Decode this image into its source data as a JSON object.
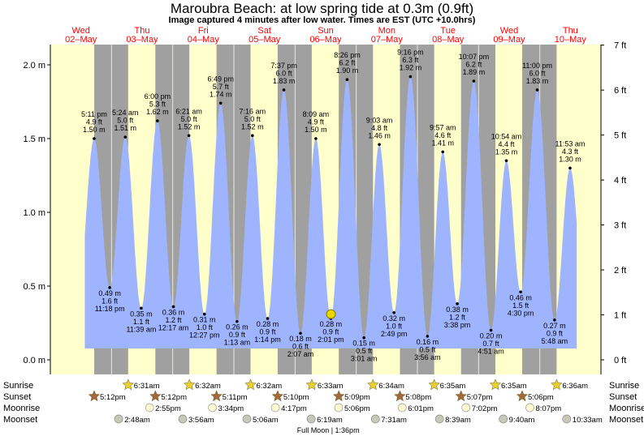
{
  "title": "Maroubra Beach: at low  spring tide at 0.3m (0.9ft)",
  "subtitle": "Image captured 4 minutes after low water. Times are EST (UTC +10.0hrs)",
  "days": [
    {
      "name": "Wed",
      "date": "02–May"
    },
    {
      "name": "Thu",
      "date": "03–May"
    },
    {
      "name": "Fri",
      "date": "04–May"
    },
    {
      "name": "Sat",
      "date": "05–May"
    },
    {
      "name": "Sun",
      "date": "06–May"
    },
    {
      "name": "Mon",
      "date": "07–May"
    },
    {
      "name": "Tue",
      "date": "08–May"
    },
    {
      "name": "Wed",
      "date": "09–May"
    },
    {
      "name": "Thu",
      "date": "10–May"
    }
  ],
  "colors": {
    "day": "#ffffcc",
    "night": "#a0a0a0",
    "water": "#9fb4ff",
    "day_label": "#ff0000",
    "sun_star": "#e8d030",
    "sunset_star": "#a06a3c"
  },
  "chart_data": {
    "type": "area",
    "x_unit": "hours since 00:00 Wed 02-May (EST)",
    "y_left_ticks": [
      "0.0 m",
      "0.5 m",
      "1.0 m",
      "1.5 m",
      "2.0 m"
    ],
    "y_left_values": [
      0,
      0.5,
      1.0,
      1.5,
      2.0
    ],
    "y_right_ticks": [
      "0 ft",
      "1 ft",
      "2 ft",
      "3 ft",
      "4 ft",
      "5 ft",
      "6 ft",
      "7 ft"
    ],
    "y_right_values": [
      0,
      1,
      2,
      3,
      4,
      5,
      6,
      7
    ],
    "ylim_m": [
      -0.1,
      2.15
    ],
    "current_marker": {
      "t": 110.08,
      "height_m": 0.31
    },
    "tides": [
      {
        "t": 17.18,
        "time": "5:11 pm",
        "ft": "4.9 ft",
        "m": "1.50 m",
        "h": 1.5,
        "type": "high"
      },
      {
        "t": 23.3,
        "time": "11:18 pm",
        "ft": "1.6 ft",
        "m": "0.49 m",
        "h": 0.49,
        "type": "low"
      },
      {
        "t": 29.4,
        "time": "5:24 am",
        "ft": "5.0 ft",
        "m": "1.51 m",
        "h": 1.51,
        "type": "high"
      },
      {
        "t": 35.65,
        "time": "11:39 am",
        "ft": "1.1 ft",
        "m": "0.35 m",
        "h": 0.35,
        "type": "low"
      },
      {
        "t": 42.0,
        "time": "6:00 pm",
        "ft": "5.3 ft",
        "m": "1.62 m",
        "h": 1.62,
        "type": "high"
      },
      {
        "t": 48.28,
        "time": "12:17 am",
        "ft": "1.2 ft",
        "m": "0.36 m",
        "h": 0.36,
        "type": "low"
      },
      {
        "t": 54.35,
        "time": "6:21 am",
        "ft": "5.0 ft",
        "m": "1.52 m",
        "h": 1.52,
        "type": "high"
      },
      {
        "t": 60.45,
        "time": "12:27 pm",
        "ft": "1.0 ft",
        "m": "0.31 m",
        "h": 0.31,
        "type": "low"
      },
      {
        "t": 66.82,
        "time": "6:49 pm",
        "ft": "5.7 ft",
        "m": "1.74 m",
        "h": 1.74,
        "type": "high"
      },
      {
        "t": 73.22,
        "time": "1:13 am",
        "ft": "0.9 ft",
        "m": "0.26 m",
        "h": 0.26,
        "type": "low"
      },
      {
        "t": 79.27,
        "time": "7:16 am",
        "ft": "5.0 ft",
        "m": "1.52 m",
        "h": 1.52,
        "type": "high"
      },
      {
        "t": 85.23,
        "time": "1:14 pm",
        "ft": "0.9 ft",
        "m": "0.28 m",
        "h": 0.28,
        "type": "low"
      },
      {
        "t": 91.62,
        "time": "7:37 pm",
        "ft": "6.0 ft",
        "m": "1.83 m",
        "h": 1.83,
        "type": "high"
      },
      {
        "t": 98.12,
        "time": "2:07 am",
        "ft": "0.6 ft",
        "m": "0.18 m",
        "h": 0.18,
        "type": "low"
      },
      {
        "t": 104.15,
        "time": "8:09 am",
        "ft": "4.9 ft",
        "m": "1.50 m",
        "h": 1.5,
        "type": "high"
      },
      {
        "t": 110.02,
        "time": "2:01 pm",
        "ft": "0.9 ft",
        "m": "0.28 m",
        "h": 0.28,
        "type": "low"
      },
      {
        "t": 116.43,
        "time": "8:26 pm",
        "ft": "6.2 ft",
        "m": "1.90 m",
        "h": 1.9,
        "type": "high"
      },
      {
        "t": 123.02,
        "time": "3:01 am",
        "ft": "0.5 ft",
        "m": "0.15 m",
        "h": 0.15,
        "type": "low"
      },
      {
        "t": 129.05,
        "time": "9:03 am",
        "ft": "4.8 ft",
        "m": "1.46 m",
        "h": 1.46,
        "type": "high"
      },
      {
        "t": 134.82,
        "time": "2:49 pm",
        "ft": "1.0 ft",
        "m": "0.32 m",
        "h": 0.32,
        "type": "low"
      },
      {
        "t": 141.27,
        "time": "9:16 pm",
        "ft": "6.3 ft",
        "m": "1.92 m",
        "h": 1.92,
        "type": "high"
      },
      {
        "t": 147.93,
        "time": "3:56 am",
        "ft": "0.5 ft",
        "m": "0.16 m",
        "h": 0.16,
        "type": "low"
      },
      {
        "t": 153.95,
        "time": "9:57 am",
        "ft": "4.6 ft",
        "m": "1.41 m",
        "h": 1.41,
        "type": "high"
      },
      {
        "t": 159.63,
        "time": "3:38 pm",
        "ft": "1.2 ft",
        "m": "0.38 m",
        "h": 0.38,
        "type": "low"
      },
      {
        "t": 166.12,
        "time": "10:07 pm",
        "ft": "6.2 ft",
        "m": "1.89 m",
        "h": 1.89,
        "type": "high"
      },
      {
        "t": 172.85,
        "time": "4:51 am",
        "ft": "0.7 ft",
        "m": "0.20 m",
        "h": 0.2,
        "type": "low"
      },
      {
        "t": 178.9,
        "time": "10:54 am",
        "ft": "4.4 ft",
        "m": "1.35 m",
        "h": 1.35,
        "type": "high"
      },
      {
        "t": 184.5,
        "time": "4:30 pm",
        "ft": "1.5 ft",
        "m": "0.46 m",
        "h": 0.46,
        "type": "low"
      },
      {
        "t": 191.0,
        "time": "11:00 pm",
        "ft": "6.0 ft",
        "m": "1.83 m",
        "h": 1.83,
        "type": "high"
      },
      {
        "t": 197.8,
        "time": "5:48 am",
        "ft": "0.9 ft",
        "m": "0.27 m",
        "h": 0.27,
        "type": "low"
      },
      {
        "t": 203.88,
        "time": "11:53 am",
        "ft": "4.3 ft",
        "m": "1.30 m",
        "h": 1.3,
        "type": "high"
      }
    ]
  },
  "rows": {
    "sunrise": {
      "label": "Sunrise",
      "items": [
        {
          "t": 30.52,
          "time": "6:31am"
        },
        {
          "t": 54.53,
          "time": "6:32am"
        },
        {
          "t": 78.53,
          "time": "6:32am"
        },
        {
          "t": 102.55,
          "time": "6:33am"
        },
        {
          "t": 126.57,
          "time": "6:34am"
        },
        {
          "t": 150.58,
          "time": "6:35am"
        },
        {
          "t": 174.58,
          "time": "6:35am"
        },
        {
          "t": 198.6,
          "time": "6:36am"
        }
      ]
    },
    "sunset": {
      "label": "Sunset",
      "items": [
        {
          "t": 17.2,
          "time": "5:12pm"
        },
        {
          "t": 41.2,
          "time": "5:12pm"
        },
        {
          "t": 65.18,
          "time": "5:11pm"
        },
        {
          "t": 89.17,
          "time": "5:10pm"
        },
        {
          "t": 113.15,
          "time": "5:09pm"
        },
        {
          "t": 137.13,
          "time": "5:08pm"
        },
        {
          "t": 161.12,
          "time": "5:07pm"
        },
        {
          "t": 185.1,
          "time": "5:06pm"
        }
      ]
    },
    "moonrise": {
      "label": "Moonrise",
      "items": [
        {
          "t": 38.92,
          "time": "2:55pm"
        },
        {
          "t": 63.57,
          "time": "3:34pm"
        },
        {
          "t": 88.28,
          "time": "4:17pm"
        },
        {
          "t": 113.1,
          "time": "5:06pm"
        },
        {
          "t": 138.02,
          "time": "6:01pm"
        },
        {
          "t": 163.03,
          "time": "7:02pm"
        },
        {
          "t": 188.12,
          "time": "8:07pm"
        }
      ]
    },
    "moonset": {
      "label": "Moonset",
      "items": [
        {
          "t": 26.8,
          "time": "2:48am"
        },
        {
          "t": 51.93,
          "time": "3:56am"
        },
        {
          "t": 77.1,
          "time": "5:06am"
        },
        {
          "t": 102.32,
          "time": "6:19am"
        },
        {
          "t": 127.52,
          "time": "7:31am"
        },
        {
          "t": 152.65,
          "time": "8:39am"
        },
        {
          "t": 177.67,
          "time": "9:40am"
        },
        {
          "t": 202.55,
          "time": "10:33am"
        }
      ]
    }
  },
  "full_moon": {
    "text": "Full Moon | 1:36pm"
  }
}
